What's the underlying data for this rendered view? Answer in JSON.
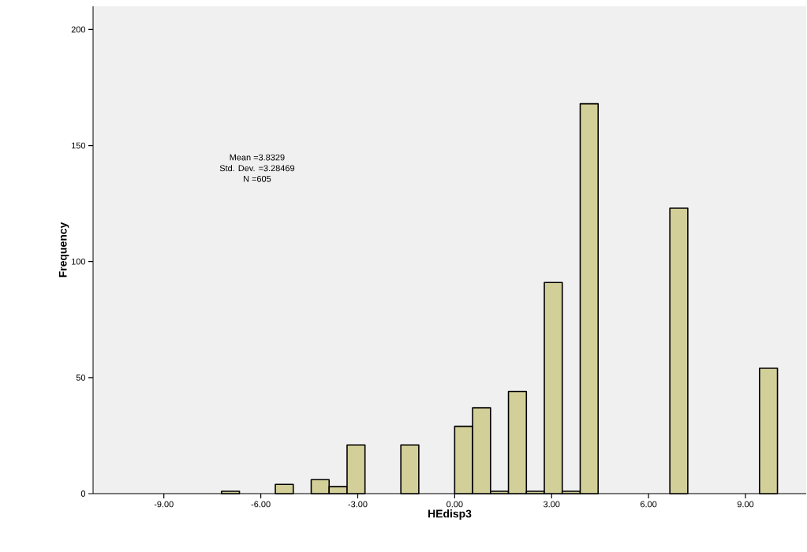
{
  "chart_data": {
    "type": "histogram",
    "xlabel": "HEdisp3",
    "ylabel": "Frequency",
    "bins": [
      -7.215,
      -6.66,
      -6.105,
      -5.55,
      -4.995,
      -4.44,
      -3.885,
      -3.33,
      -2.775,
      -2.22,
      -1.665,
      -1.11,
      -0.555,
      0,
      0.555,
      1.11,
      1.665,
      2.22,
      2.775,
      3.33,
      3.885,
      4.44,
      4.995,
      5.55,
      6.105,
      6.66,
      7.215,
      7.77,
      8.325,
      8.88,
      9.435,
      9.99
    ],
    "values": [
      1,
      0,
      0,
      4,
      0,
      6,
      3,
      21,
      0,
      0,
      21,
      0,
      0,
      29,
      37,
      1,
      44,
      1,
      91,
      1,
      168,
      0,
      0,
      0,
      0,
      123,
      0,
      0,
      0,
      0,
      54
    ],
    "color": "#d3cf98",
    "xlim": [
      -11.19,
      10.88
    ],
    "xticks": [
      {
        "value": -9,
        "label": "-9.00"
      },
      {
        "value": -6,
        "label": "-6.00"
      },
      {
        "value": -3,
        "label": "-3.00"
      },
      {
        "value": 0,
        "label": "0.00"
      },
      {
        "value": 3,
        "label": "3.00"
      },
      {
        "value": 6,
        "label": "6.00"
      },
      {
        "value": 9,
        "label": "9.00"
      }
    ],
    "ylim": [
      0,
      210
    ],
    "yticks": [
      0,
      50,
      100,
      150,
      200
    ],
    "annotations": [
      "Mean =3.8329",
      "Std. Dev. =3.28469",
      "N =605"
    ]
  }
}
